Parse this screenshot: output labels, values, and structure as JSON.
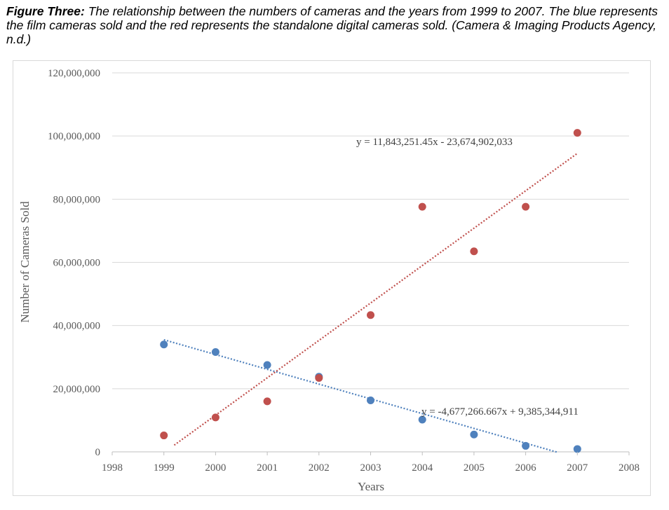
{
  "caption": {
    "bold": "Figure Three:",
    "text": " The relationship between the numbers of cameras and the years from 1999 to 2007. The blue represents the film cameras sold and the red represents the standalone digital cameras sold. (Camera & Imaging Products Agency, n.d.)"
  },
  "chart_data": {
    "type": "scatter",
    "xlabel": "Years",
    "ylabel": "Number of Cameras Sold",
    "xlim": [
      1998,
      2008
    ],
    "ylim": [
      0,
      120000000
    ],
    "x_ticks": [
      "1998",
      "1999",
      "2000",
      "2001",
      "2002",
      "2003",
      "2004",
      "2005",
      "2006",
      "2007",
      "2008"
    ],
    "y_ticks": [
      "0",
      "20,000,000",
      "40,000,000",
      "60,000,000",
      "80,000,000",
      "100,000,000",
      "120,000,000"
    ],
    "grid": "horizontal",
    "series": [
      {
        "color": "#4f81bd",
        "x": [
          1999,
          2000,
          2001,
          2002,
          2003,
          2004,
          2005,
          2006,
          2007
        ],
        "y": [
          34000000,
          31600000,
          27500000,
          23800000,
          16300000,
          10200000,
          5500000,
          1900000,
          900000
        ],
        "trendline": {
          "slope": -4677266.667,
          "intercept": 9385344911,
          "x_range": [
            1999,
            2006.6
          ]
        },
        "equation": "y = -4,677,266.667x + 9,385,344,911"
      },
      {
        "color": "#c0504d",
        "x": [
          1999,
          2000,
          2001,
          2002,
          2003,
          2004,
          2005,
          2006,
          2007
        ],
        "y": [
          5200000,
          10900000,
          16000000,
          23400000,
          43300000,
          77600000,
          63500000,
          77600000,
          101000000
        ],
        "trendline": {
          "slope": 11843251.45,
          "intercept": -23674902033,
          "x_range": [
            1999.2,
            2007
          ]
        },
        "equation": "y = 11,843,251.45x - 23,674,902,033"
      }
    ]
  }
}
